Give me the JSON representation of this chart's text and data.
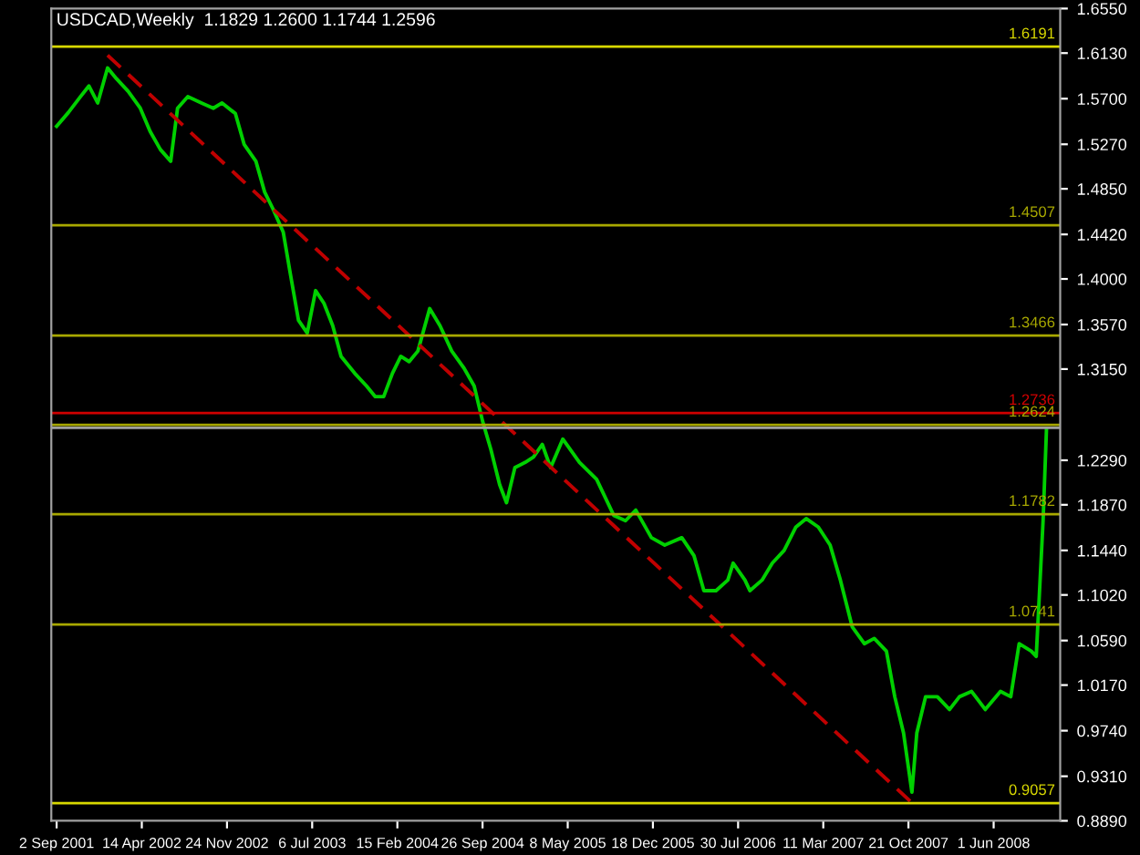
{
  "chart_data": {
    "type": "line",
    "title": "USDCAD,Weekly  1.1829 1.2600 1.1744 1.2596",
    "xlim": [
      "2001-08-19",
      "2008-11-23"
    ],
    "xticks": [
      {
        "value": "2001-09-02",
        "label": "2 Sep 2001"
      },
      {
        "value": "2002-04-14",
        "label": "14 Apr 2002"
      },
      {
        "value": "2002-11-24",
        "label": "24 Nov 2002"
      },
      {
        "value": "2003-07-06",
        "label": "6 Jul 2003"
      },
      {
        "value": "2004-02-15",
        "label": "15 Feb 2004"
      },
      {
        "value": "2004-09-26",
        "label": "26 Sep 2004"
      },
      {
        "value": "2005-05-08",
        "label": "8 May 2005"
      },
      {
        "value": "2005-12-18",
        "label": "18 Dec 2005"
      },
      {
        "value": "2006-07-30",
        "label": "30 Jul 2006"
      },
      {
        "value": "2007-03-11",
        "label": "11 Mar 2007"
      },
      {
        "value": "2007-10-21",
        "label": "21 Oct 2007"
      },
      {
        "value": "2008-06-01",
        "label": "1 Jun 2008"
      }
    ],
    "ylim": [
      0.889,
      1.655
    ],
    "yticks": [
      {
        "value": 0.889,
        "label": "0.8890"
      },
      {
        "value": 0.931,
        "label": "0.9310"
      },
      {
        "value": 0.974,
        "label": "0.9740"
      },
      {
        "value": 1.017,
        "label": "1.0170"
      },
      {
        "value": 1.059,
        "label": "1.0590"
      },
      {
        "value": 1.102,
        "label": "1.1020"
      },
      {
        "value": 1.144,
        "label": "1.1440"
      },
      {
        "value": 1.187,
        "label": "1.1870"
      },
      {
        "value": 1.229,
        "label": "1.2290"
      },
      {
        "value": 1.315,
        "label": "1.3150"
      },
      {
        "value": 1.357,
        "label": "1.3570"
      },
      {
        "value": 1.4,
        "label": "1.4000"
      },
      {
        "value": 1.442,
        "label": "1.4420"
      },
      {
        "value": 1.485,
        "label": "1.4850"
      },
      {
        "value": 1.527,
        "label": "1.5270"
      },
      {
        "value": 1.57,
        "label": "1.5700"
      },
      {
        "value": 1.613,
        "label": "1.6130"
      },
      {
        "value": 1.655,
        "label": "1.6550"
      }
    ],
    "grid": false,
    "legend": false,
    "series": [
      {
        "color": "#00d000",
        "line_style": "solid",
        "x": [
          "2001-09-02",
          "2001-10-03",
          "2001-11-04",
          "2001-11-26",
          "2001-12-19",
          "2002-01-14",
          "2002-02-06",
          "2002-03-09",
          "2002-04-10",
          "2002-05-06",
          "2002-06-02",
          "2002-06-29",
          "2002-07-17",
          "2002-08-13",
          "2002-09-18",
          "2002-10-19",
          "2002-11-11",
          "2002-12-16",
          "2003-01-08",
          "2003-02-08",
          "2003-03-03",
          "2003-03-25",
          "2003-04-21",
          "2003-05-09",
          "2003-05-31",
          "2003-06-23",
          "2003-07-15",
          "2003-08-06",
          "2003-08-29",
          "2003-09-20",
          "2003-10-26",
          "2003-11-26",
          "2003-12-19",
          "2004-01-10",
          "2004-02-02",
          "2004-02-24",
          "2004-03-17",
          "2004-04-09",
          "2004-05-10",
          "2004-06-06",
          "2004-07-07",
          "2004-08-08",
          "2004-09-04",
          "2004-09-26",
          "2004-10-18",
          "2004-11-10",
          "2004-11-28",
          "2004-12-20",
          "2005-01-16",
          "2005-02-07",
          "2005-03-02",
          "2005-03-24",
          "2005-04-25",
          "2005-06-08",
          "2005-07-23",
          "2005-09-06",
          "2005-10-07",
          "2005-11-03",
          "2005-12-14",
          "2006-01-18",
          "2006-03-04",
          "2006-04-05",
          "2006-05-01",
          "2006-06-02",
          "2006-07-03",
          "2006-07-17",
          "2006-08-17",
          "2006-08-30",
          "2006-10-01",
          "2006-10-28",
          "2006-11-28",
          "2006-12-29",
          "2007-01-25",
          "2007-02-26",
          "2007-03-29",
          "2007-04-25",
          "2007-05-26",
          "2007-06-27",
          "2007-07-23",
          "2007-08-24",
          "2007-09-15",
          "2007-10-08",
          "2007-10-30",
          "2007-11-12",
          "2007-12-05",
          "2008-01-05",
          "2008-02-06",
          "2008-03-03",
          "2008-04-04",
          "2008-05-10",
          "2008-06-19",
          "2008-07-16",
          "2008-08-07",
          "2008-09-08",
          "2008-09-21",
          "2008-10-09",
          "2008-10-18"
        ],
        "values": [
          1.544,
          1.557,
          1.572,
          1.582,
          1.566,
          1.599,
          1.589,
          1.577,
          1.561,
          1.539,
          1.522,
          1.511,
          1.561,
          1.572,
          1.566,
          1.561,
          1.566,
          1.556,
          1.527,
          1.511,
          1.482,
          1.466,
          1.444,
          1.406,
          1.361,
          1.349,
          1.389,
          1.377,
          1.356,
          1.327,
          1.311,
          1.299,
          1.289,
          1.289,
          1.311,
          1.327,
          1.322,
          1.332,
          1.372,
          1.356,
          1.332,
          1.316,
          1.299,
          1.266,
          1.239,
          1.206,
          1.189,
          1.222,
          1.227,
          1.232,
          1.244,
          1.222,
          1.249,
          1.227,
          1.211,
          1.177,
          1.172,
          1.182,
          1.156,
          1.149,
          1.156,
          1.139,
          1.106,
          1.106,
          1.116,
          1.132,
          1.116,
          1.106,
          1.116,
          1.132,
          1.144,
          1.166,
          1.174,
          1.166,
          1.149,
          1.116,
          1.072,
          1.056,
          1.061,
          1.049,
          1.006,
          0.972,
          0.916,
          0.972,
          1.006,
          1.006,
          0.994,
          1.006,
          1.011,
          0.994,
          1.011,
          1.006,
          1.056,
          1.049,
          1.044,
          1.172,
          1.259
        ]
      },
      {
        "color": "#c00000",
        "line_style": "dashed",
        "x": [
          "2002-01-14",
          "2007-10-30"
        ],
        "values": [
          1.611,
          0.906
        ]
      }
    ],
    "ref_lines": [
      {
        "axis": "y",
        "value": 1.6191,
        "label": "1.6191",
        "color": "#d8d800"
      },
      {
        "axis": "y",
        "value": 1.4507,
        "label": "1.4507",
        "color": "#a8a800"
      },
      {
        "axis": "y",
        "value": 1.3466,
        "label": "1.3466",
        "color": "#a8a800"
      },
      {
        "axis": "y",
        "value": 1.2736,
        "label": "1.2736",
        "color": "#d00000"
      },
      {
        "axis": "y",
        "value": 1.2624,
        "label": "1.2624",
        "color": "#a8a800"
      },
      {
        "axis": "y",
        "value": 1.2596,
        "color": "#a0a0a0"
      },
      {
        "axis": "y",
        "value": 1.1782,
        "label": "1.1782",
        "color": "#a8a800"
      },
      {
        "axis": "y",
        "value": 1.0741,
        "label": "1.0741",
        "color": "#a8a800"
      },
      {
        "axis": "y",
        "value": 0.9057,
        "label": "0.9057",
        "color": "#d8d800"
      }
    ]
  }
}
